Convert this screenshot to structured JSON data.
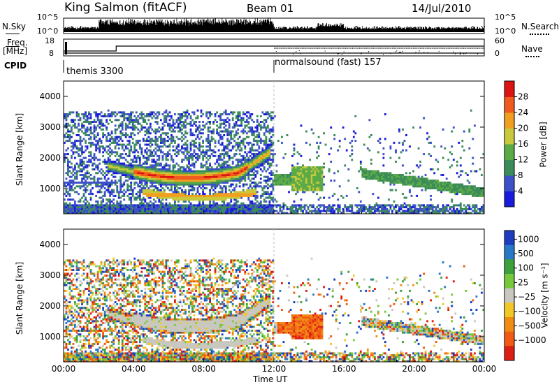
{
  "header": {
    "station": "King Salmon (fitACF)",
    "beam": "Beam 01",
    "date": "14/Jul/2010"
  },
  "side_labels": {
    "nsky": "N.Sky",
    "freq": "Freq.",
    "freq_unit": "[MHz]",
    "cpid": "CPID",
    "nsearch": "N.Search",
    "nave": "Nave"
  },
  "colors": {
    "velocity_white_band": "#c8c8c0",
    "panel_border": "#000000"
  },
  "chart_data": [
    {
      "type": "line",
      "name": "nsky-nsearch",
      "y_ticks_left": [
        "10^5",
        "10^0"
      ],
      "y_ticks_right": [
        "10^5",
        "10^0"
      ]
    },
    {
      "type": "line",
      "name": "freq-nave",
      "y_ticks_left": [
        "18",
        "8"
      ],
      "y_ticks_right": [
        "60",
        "0"
      ]
    },
    {
      "type": "table",
      "name": "cpid",
      "segments": [
        {
          "label": "themis 3300",
          "start": "00:00",
          "end": "12:00"
        },
        {
          "label": "normalsound (fast) 157",
          "start": "12:00",
          "end": "24:00"
        }
      ]
    },
    {
      "type": "heatmap",
      "name": "power",
      "ylabel": "Slant Range [km]",
      "ylim": [
        180,
        4500
      ],
      "yticks": [
        1000,
        2000,
        3000,
        4000
      ],
      "colorbar_label": "Power [dB]",
      "colorbar_ticks": [
        "4",
        "8",
        "12",
        "16",
        "20",
        "24",
        "28"
      ],
      "colorbar_colors": [
        "#1a1adc",
        "#3c50c8",
        "#3c8c5a",
        "#5aaa46",
        "#c8c83c",
        "#f0a01e",
        "#f05a1e",
        "#dc1414"
      ]
    },
    {
      "type": "heatmap",
      "name": "velocity",
      "ylabel": "Slant Range [km]",
      "ylim": [
        180,
        4500
      ],
      "yticks": [
        1000,
        2000,
        3000,
        4000
      ],
      "xlabel": "Time UT",
      "xticks": [
        "00:00",
        "04:00",
        "08:00",
        "12:00",
        "16:00",
        "20:00",
        "00:00"
      ],
      "colorbar_label": "Velocity [m s⁻¹]",
      "colorbar_ticks": [
        "1000",
        "500",
        "100",
        "25",
        "−25",
        "−100",
        "−500",
        "−1000"
      ],
      "colorbar_colors": [
        "#1e3cbe",
        "#2878c8",
        "#3ca03c",
        "#78c83c",
        "#c8c8c0",
        "#f0c828",
        "#f08c14",
        "#f05a14",
        "#dc1e14"
      ]
    }
  ]
}
